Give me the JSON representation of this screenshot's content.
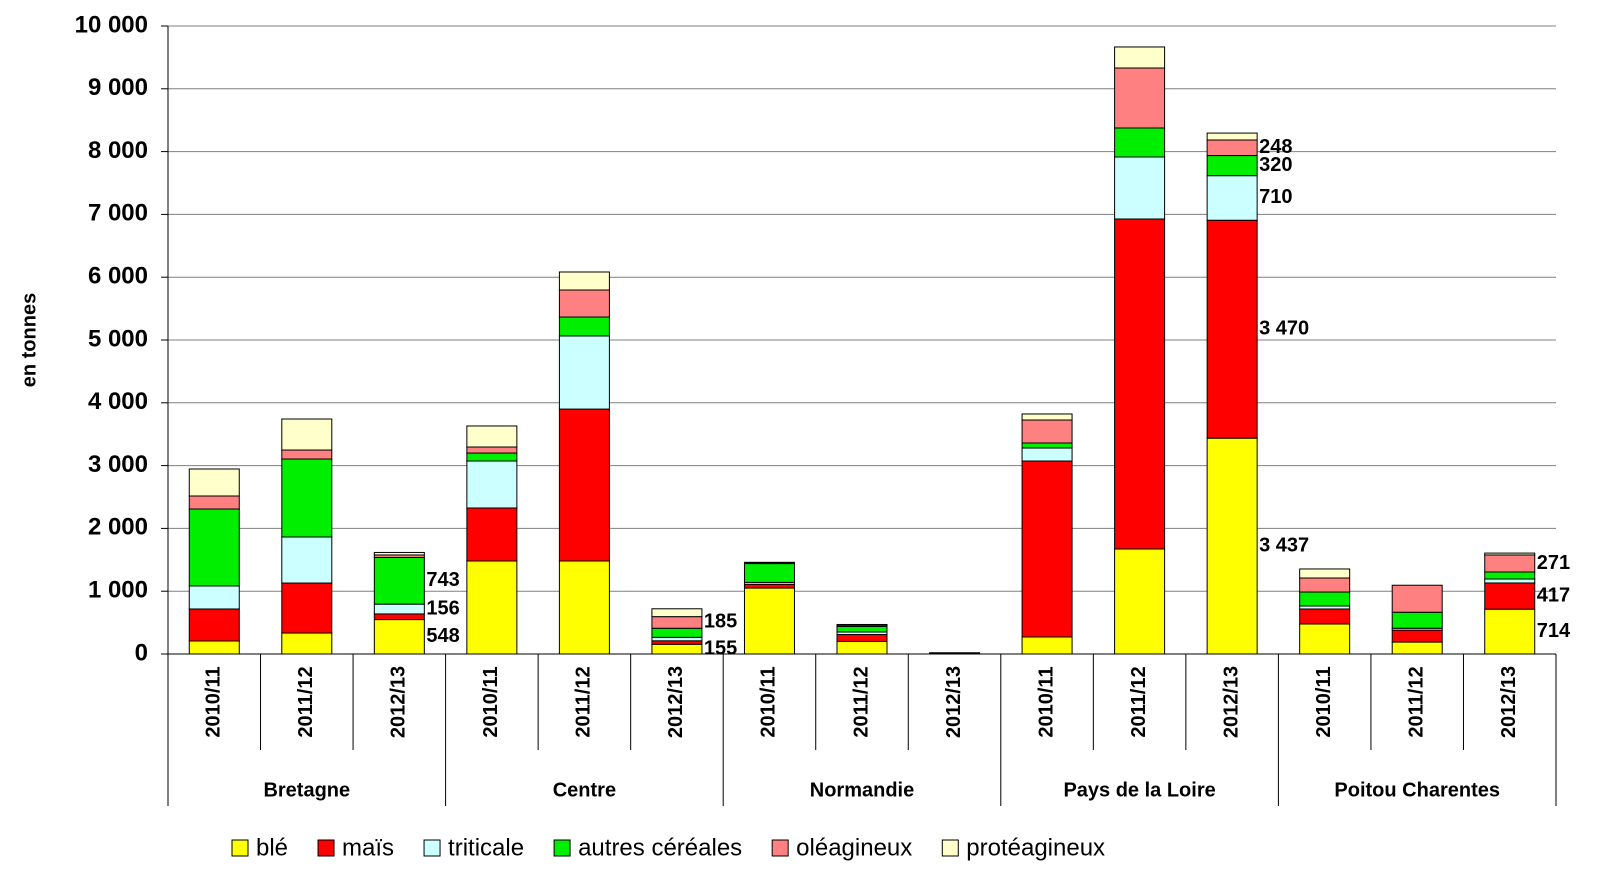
{
  "chart_data": {
    "type": "stacked_bar",
    "y_label": "en tonnes",
    "categories": [
      "2010/11",
      "2011/12",
      "2012/13",
      "2010/11",
      "2011/12",
      "2012/13",
      "2010/11",
      "2011/12",
      "2012/13",
      "2010/11",
      "2011/12",
      "2012/13",
      "2010/11",
      "2011/12",
      "2012/13"
    ],
    "groups": [
      "Bretagne",
      "Centre",
      "Normandie",
      "Pays de la Loire",
      "Poitou Charentes"
    ],
    "ylim": [
      0,
      10000
    ],
    "yticks": [
      0,
      {
        "value": 1000,
        "label": "1 000"
      },
      {
        "value": 2000,
        "label": "2 000"
      },
      {
        "value": 3000,
        "label": "3 000"
      },
      {
        "value": 4000,
        "label": "4 000"
      },
      {
        "value": 5000,
        "label": "5 000"
      },
      {
        "value": 6000,
        "label": "6 000"
      },
      {
        "value": 7000,
        "label": "7 000"
      },
      {
        "value": 8000,
        "label": "8 000"
      },
      {
        "value": 9000,
        "label": "9 000"
      },
      {
        "value": 10000,
        "label": "10 000"
      }
    ],
    "grid": true,
    "series": [
      {
        "name": "blé",
        "color": "#ffff00",
        "values": [
          207,
          334,
          548,
          1481,
          1481,
          155,
          1050,
          200,
          10,
          271,
          1672,
          3437,
          478,
          190,
          714
        ],
        "value_labels": [
          null,
          null,
          "548",
          null,
          null,
          "155",
          null,
          null,
          null,
          null,
          null,
          "3 437",
          null,
          null,
          "714"
        ]
      },
      {
        "name": "maïs",
        "color": "#ff0000",
        "values": [
          510,
          796,
          90,
          844,
          2419,
          55,
          60,
          110,
          5,
          2802,
          5255,
          3470,
          239,
          190,
          417
        ],
        "value_labels": [
          null,
          null,
          null,
          null,
          null,
          null,
          null,
          null,
          null,
          null,
          null,
          "3 470",
          null,
          null,
          "417"
        ]
      },
      {
        "name": "triticale",
        "color": "#ccffff",
        "values": [
          366,
          733,
          156,
          748,
          1164,
          55,
          30,
          40,
          0,
          207,
          987,
          710,
          47,
          30,
          63
        ],
        "value_labels": [
          null,
          null,
          "156",
          null,
          null,
          null,
          null,
          null,
          null,
          null,
          null,
          "710",
          null,
          null,
          null
        ]
      },
      {
        "name": "autres céréales",
        "color": "#00ee00",
        "values": [
          1226,
          1242,
          743,
          127,
          302,
          145,
          300,
          90,
          5,
          80,
          462,
          320,
          223,
          255,
          112
        ],
        "value_labels": [
          null,
          null,
          "743",
          null,
          null,
          null,
          null,
          null,
          null,
          null,
          null,
          "320",
          null,
          null,
          null
        ]
      },
      {
        "name": "oléagineux",
        "color": "#ff8080",
        "values": [
          207,
          143,
          40,
          96,
          430,
          185,
          10,
          20,
          0,
          366,
          955,
          248,
          223,
          430,
          271
        ],
        "value_labels": [
          null,
          null,
          null,
          null,
          null,
          "185",
          null,
          null,
          null,
          null,
          null,
          "248",
          null,
          null,
          "271"
        ]
      },
      {
        "name": "protéagineux",
        "color": "#ffffcc",
        "values": [
          430,
          494,
          40,
          335,
          287,
          125,
          10,
          10,
          0,
          96,
          335,
          110,
          144,
          0,
          30
        ],
        "value_labels": [
          null,
          null,
          null,
          null,
          null,
          null,
          null,
          null,
          null,
          null,
          null,
          null,
          null,
          null,
          null
        ]
      }
    ]
  }
}
